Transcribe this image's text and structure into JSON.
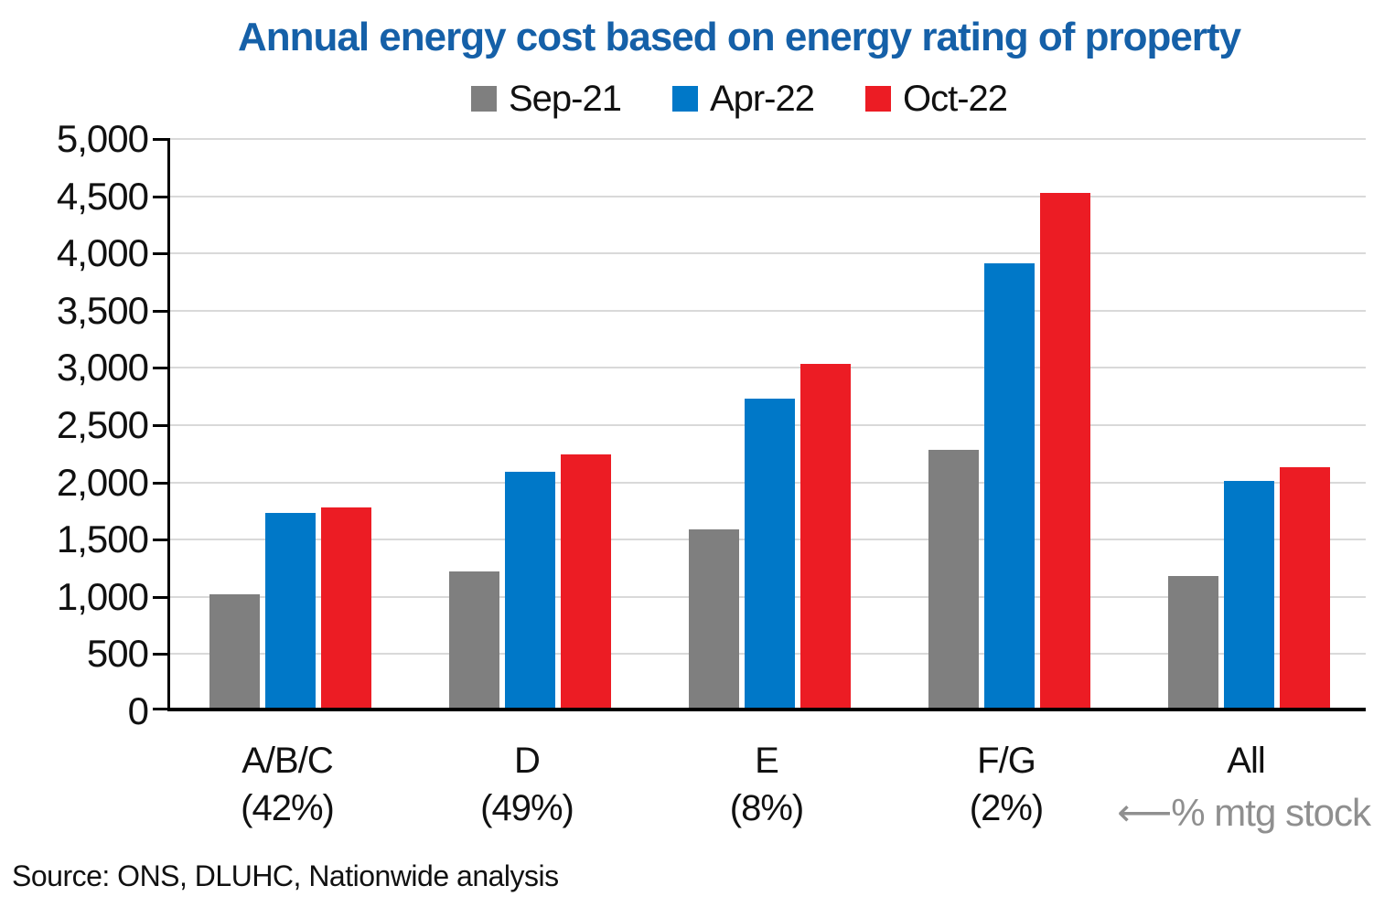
{
  "source": "Source: ONS, DLUHC, Nationwide analysis",
  "colors": {
    "title": "#1560a8",
    "axis": "#000000",
    "gridline": "#d9d9d9",
    "text": "#111111",
    "annotation": "#8f8f8f"
  },
  "chart_data": {
    "type": "bar",
    "title": "Annual energy cost based on energy rating of property",
    "categories": [
      "A/B/C (42%)",
      "D (49%)",
      "E (8%)",
      "F/G (2%)",
      "All"
    ],
    "category_labels": [
      {
        "label": "A/B/C",
        "sublabel": "(42%)"
      },
      {
        "label": "D",
        "sublabel": "(49%)"
      },
      {
        "label": "E",
        "sublabel": "(8%)"
      },
      {
        "label": "F/G",
        "sublabel": "(2%)"
      },
      {
        "label": "All",
        "sublabel": ""
      }
    ],
    "series": [
      {
        "name": "Sep-21",
        "color": "#7f7f7f",
        "values": [
          990,
          1190,
          1560,
          2250,
          1150
        ]
      },
      {
        "name": "Apr-22",
        "color": "#0078c8",
        "values": [
          1700,
          2060,
          2700,
          3880,
          1980
        ]
      },
      {
        "name": "Oct-22",
        "color": "#ec1c24",
        "values": [
          1750,
          2210,
          3000,
          4500,
          2100
        ]
      }
    ],
    "xlabel": "",
    "ylabel": "",
    "ylim": [
      0,
      5000
    ],
    "ytick_step": 500,
    "y_tick_labels": [
      "5,000",
      "4,500",
      "4,000",
      "3,500",
      "3,000",
      "2,500",
      "2,000",
      "1,500",
      "1,000",
      "500",
      "0"
    ],
    "grid": true,
    "legend_position": "top",
    "x_annotation": "⟵% mtg stock"
  }
}
